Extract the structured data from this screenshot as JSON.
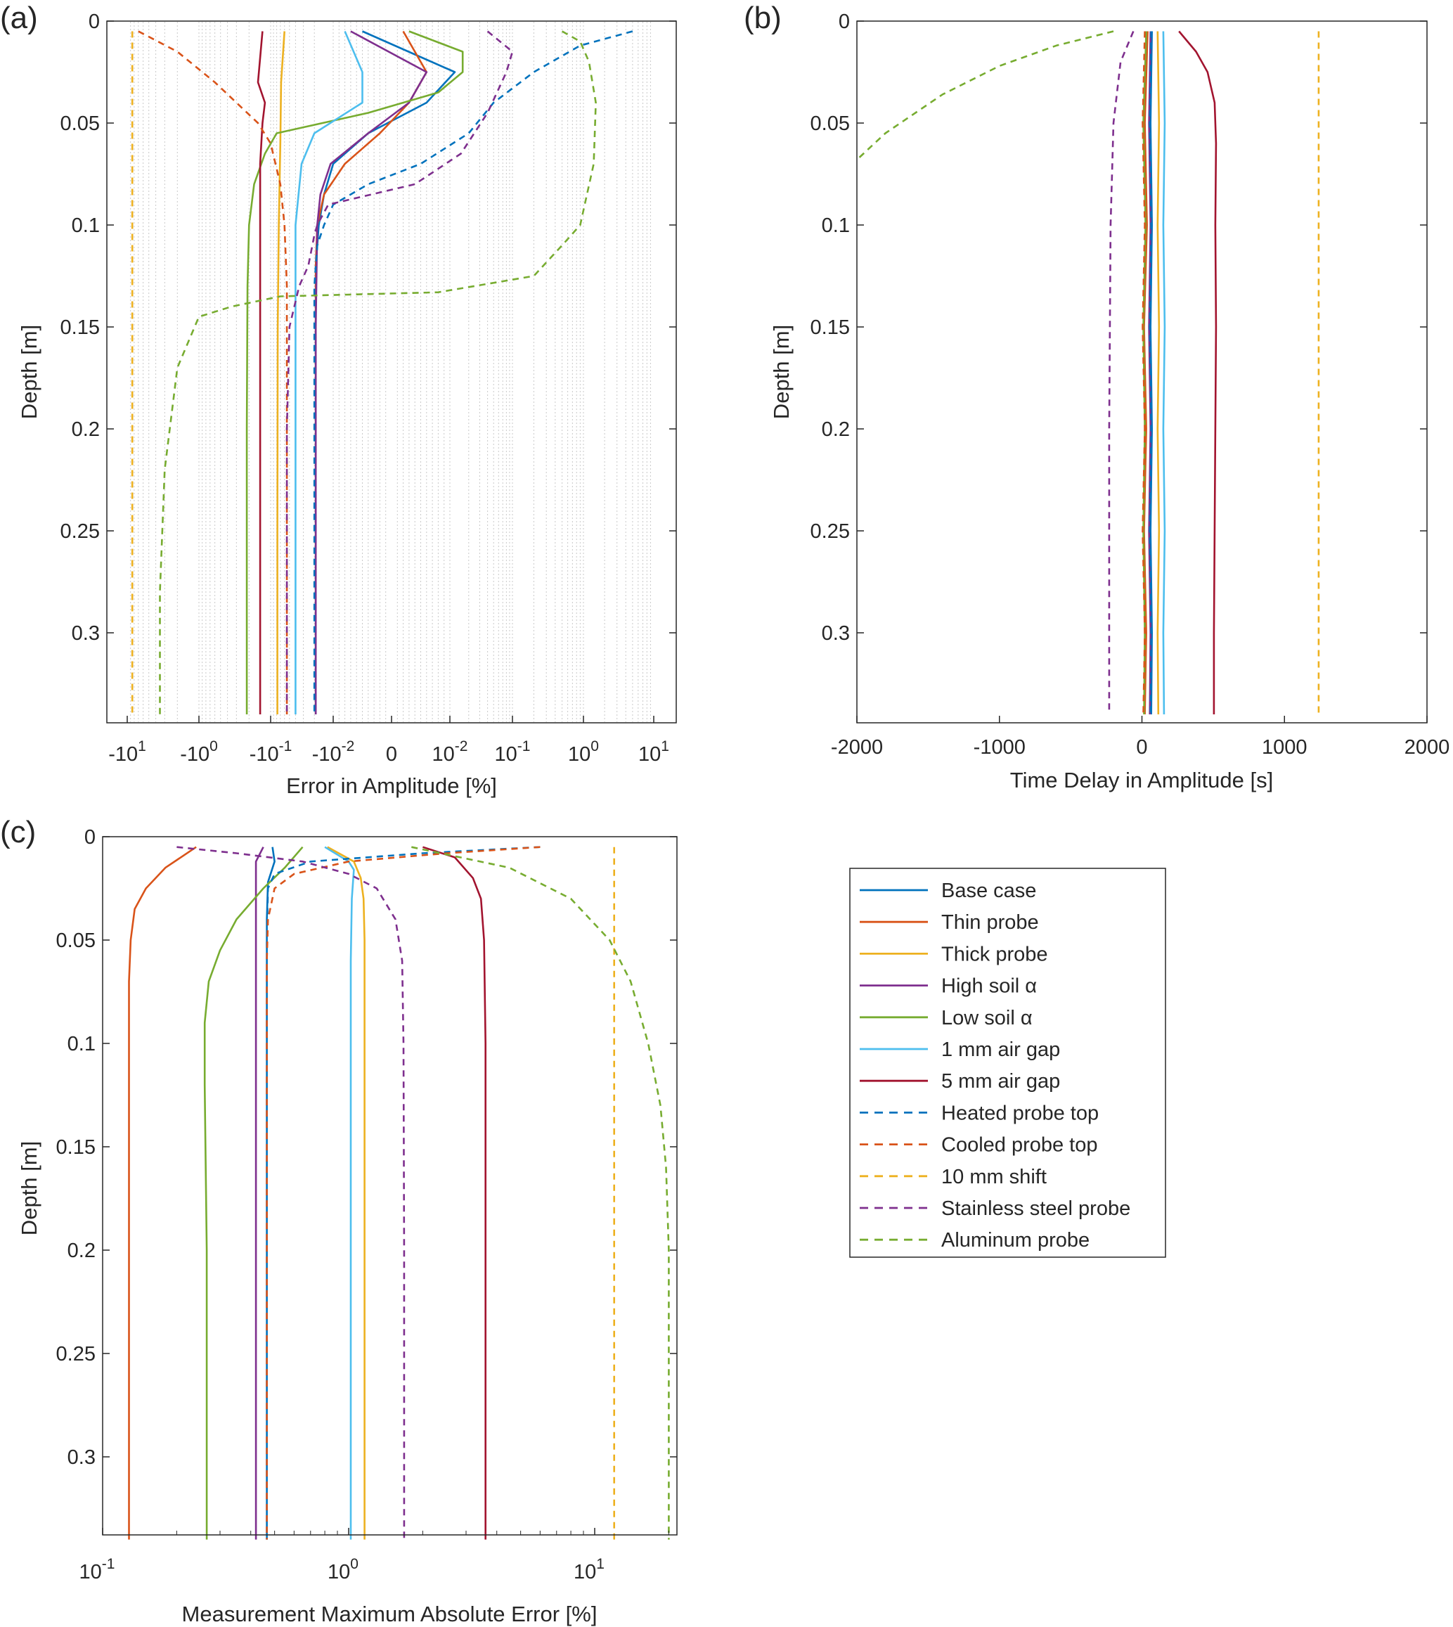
{
  "panels": {
    "a": {
      "label": "(a)",
      "xlabel": "Error in Amplitude [%]",
      "ylabel": "Depth [m]",
      "x_tick_labels": [
        "-10",
        "-10",
        "-10",
        "-10",
        "0",
        "10",
        "10",
        "10",
        "10"
      ],
      "x_tick_exponents": [
        "1",
        "0",
        "-1",
        "-2",
        "",
        "-2",
        "-1",
        "0",
        "1"
      ],
      "y_tick_labels": [
        "0",
        "0.05",
        "0.1",
        "0.15",
        "0.2",
        "0.25",
        "0.3"
      ]
    },
    "b": {
      "label": "(b)",
      "xlabel": "Time Delay in Amplitude [s]",
      "ylabel": "Depth [m]",
      "x_tick_labels": [
        "-2000",
        "-1000",
        "0",
        "1000",
        "2000"
      ],
      "y_tick_labels": [
        "0",
        "0.05",
        "0.1",
        "0.15",
        "0.2",
        "0.25",
        "0.3"
      ]
    },
    "c": {
      "label": "(c)",
      "xlabel": "Measurement Maximum Absolute Error [%]",
      "ylabel": "Depth [m]",
      "x_tick_labels": [
        "10",
        "10",
        "10"
      ],
      "x_tick_exponents": [
        "-1",
        "0",
        "1"
      ],
      "y_tick_labels": [
        "0",
        "0.05",
        "0.1",
        "0.15",
        "0.2",
        "0.25",
        "0.3"
      ]
    }
  },
  "legend": [
    {
      "label": "Base case",
      "color": "#0072BD",
      "style": "solid"
    },
    {
      "label": "Thin probe",
      "color": "#D95319",
      "style": "solid"
    },
    {
      "label": "Thick probe",
      "color": "#EDB120",
      "style": "solid"
    },
    {
      "label": "High soil α",
      "color": "#7E2F8E",
      "style": "solid"
    },
    {
      "label": "Low soil α",
      "color": "#77AC30",
      "style": "solid"
    },
    {
      "label": "1 mm air gap",
      "color": "#4DBEEE",
      "style": "solid"
    },
    {
      "label": "5 mm air gap",
      "color": "#A2142F",
      "style": "solid"
    },
    {
      "label": "Heated probe top",
      "color": "#0072BD",
      "style": "dashed"
    },
    {
      "label": "Cooled probe top",
      "color": "#D95319",
      "style": "dashed"
    },
    {
      "label": "10 mm shift",
      "color": "#EDB120",
      "style": "dashed"
    },
    {
      "label": "Stainless steel probe",
      "color": "#7E2F8E",
      "style": "dashed"
    },
    {
      "label": "Aluminum probe",
      "color": "#77AC30",
      "style": "dashed"
    }
  ],
  "chart_data": [
    {
      "panel": "a",
      "type": "line",
      "title": "",
      "xlabel": "Error in Amplitude [%]",
      "ylabel": "Depth [m]",
      "xscale": "symlog",
      "xlim": [
        -13,
        13
      ],
      "ylim": [
        0,
        0.345
      ],
      "y_reversed": true,
      "grid": "minor-x",
      "series": [
        {
          "name": "Base case",
          "x": [
            -0.005,
            0.012,
            0.006,
            -0.004,
            -0.01,
            -0.014,
            -0.017,
            -0.019,
            -0.019,
            -0.019
          ],
          "y": [
            0.005,
            0.025,
            0.04,
            0.055,
            0.07,
            0.085,
            0.1,
            0.12,
            0.2,
            0.34
          ]
        },
        {
          "name": "Thin probe",
          "x": [
            0.002,
            0.006,
            0.003,
            -0.002,
            -0.008,
            -0.014,
            -0.018,
            -0.019,
            -0.019,
            -0.019
          ],
          "y": [
            0.005,
            0.025,
            0.04,
            0.055,
            0.07,
            0.085,
            0.1,
            0.12,
            0.2,
            0.34
          ]
        },
        {
          "name": "Thick probe",
          "x": [
            -0.06,
            -0.068,
            -0.07,
            -0.074,
            -0.077,
            -0.078,
            -0.078
          ],
          "y": [
            0.005,
            0.03,
            0.06,
            0.1,
            0.15,
            0.25,
            0.34
          ]
        },
        {
          "name": "High soil α",
          "x": [
            -0.007,
            0.006,
            0.003,
            -0.004,
            -0.011,
            -0.016,
            -0.018,
            -0.019,
            -0.019
          ],
          "y": [
            0.005,
            0.025,
            0.04,
            0.055,
            0.07,
            0.085,
            0.1,
            0.15,
            0.34
          ]
        },
        {
          "name": "Low soil α",
          "x": [
            0.003,
            0.016,
            0.016,
            0.008,
            -0.004,
            -0.08,
            -0.12,
            -0.17,
            -0.2,
            -0.21,
            -0.215,
            -0.215
          ],
          "y": [
            0.005,
            0.015,
            0.025,
            0.035,
            0.045,
            0.055,
            0.065,
            0.08,
            0.1,
            0.13,
            0.2,
            0.34
          ]
        },
        {
          "name": "1 mm air gap",
          "x": [
            -0.008,
            -0.005,
            -0.005,
            -0.02,
            -0.032,
            -0.04,
            -0.04,
            -0.04
          ],
          "y": [
            0.005,
            0.025,
            0.04,
            0.055,
            0.07,
            0.1,
            0.2,
            0.34
          ]
        },
        {
          "name": "5 mm air gap",
          "x": [
            -0.13,
            -0.15,
            -0.12,
            -0.13,
            -0.14,
            -0.14,
            -0.14
          ],
          "y": [
            0.005,
            0.03,
            0.04,
            0.05,
            0.07,
            0.15,
            0.34
          ]
        },
        {
          "name": "Heated probe top",
          "x": [
            5.0,
            0.9,
            0.2,
            0.05,
            0.02,
            0.005,
            -0.004,
            -0.01,
            -0.014,
            -0.018,
            -0.02,
            -0.02,
            -0.02
          ],
          "y": [
            0.005,
            0.012,
            0.025,
            0.04,
            0.055,
            0.07,
            0.08,
            0.09,
            0.1,
            0.11,
            0.13,
            0.2,
            0.34
          ]
        },
        {
          "name": "Cooled probe top",
          "x": [
            -7.0,
            -2.0,
            -0.6,
            -0.15,
            -0.1,
            -0.07,
            -0.06,
            -0.055,
            -0.055,
            -0.055
          ],
          "y": [
            0.005,
            0.015,
            0.03,
            0.05,
            0.06,
            0.08,
            0.1,
            0.13,
            0.2,
            0.34
          ]
        },
        {
          "name": "10 mm shift",
          "x": [
            -8.5,
            -8.5,
            -8.5,
            -8.5,
            -8.5
          ],
          "y": [
            0.005,
            0.1,
            0.2,
            0.3,
            0.34
          ]
        },
        {
          "name": "Stainless steel probe",
          "x": [
            0.04,
            0.1,
            0.08,
            0.04,
            0.015,
            0.004,
            -0.012,
            -0.018,
            -0.02,
            -0.025,
            -0.035,
            -0.05,
            -0.055,
            -0.055
          ],
          "y": [
            0.005,
            0.015,
            0.025,
            0.045,
            0.065,
            0.08,
            0.09,
            0.1,
            0.105,
            0.12,
            0.13,
            0.15,
            0.2,
            0.34
          ]
        },
        {
          "name": "Aluminum probe",
          "x": [
            0.5,
            0.9,
            1.2,
            1.5,
            1.4,
            0.9,
            0.5,
            0.2,
            0.008,
            -0.07,
            -0.35,
            -1.0,
            -2.0,
            -3.0,
            -3.5,
            -3.5
          ],
          "y": [
            0.005,
            0.01,
            0.02,
            0.04,
            0.07,
            0.1,
            0.11,
            0.125,
            0.133,
            0.135,
            0.14,
            0.145,
            0.17,
            0.22,
            0.28,
            0.34
          ]
        }
      ]
    },
    {
      "panel": "b",
      "type": "line",
      "title": "",
      "xlabel": "Time Delay in Amplitude [s]",
      "ylabel": "Depth [m]",
      "xlim": [
        -2000,
        2000
      ],
      "ylim": [
        0,
        0.345
      ],
      "y_reversed": true,
      "series": [
        {
          "name": "Base case",
          "x": [
            70,
            60,
            70,
            60,
            70,
            60,
            70,
            65
          ],
          "y": [
            0.005,
            0.05,
            0.1,
            0.15,
            0.2,
            0.25,
            0.3,
            0.34
          ]
        },
        {
          "name": "Thin probe",
          "x": [
            40,
            20,
            35,
            15,
            30,
            15,
            30,
            20
          ],
          "y": [
            0.005,
            0.05,
            0.1,
            0.15,
            0.2,
            0.25,
            0.3,
            0.34
          ]
        },
        {
          "name": "Thick probe",
          "x": [
            110,
            120,
            110,
            120,
            110,
            120,
            110,
            115
          ],
          "y": [
            0.005,
            0.05,
            0.1,
            0.15,
            0.2,
            0.25,
            0.3,
            0.34
          ]
        },
        {
          "name": "High soil α",
          "x": [
            60,
            50,
            60,
            50,
            60,
            50,
            60,
            55
          ],
          "y": [
            0.005,
            0.05,
            0.1,
            0.15,
            0.2,
            0.25,
            0.3,
            0.34
          ]
        },
        {
          "name": "Low soil α",
          "x": [
            30,
            10,
            25,
            10,
            20,
            10,
            20,
            15
          ],
          "y": [
            0.005,
            0.05,
            0.1,
            0.15,
            0.2,
            0.25,
            0.3,
            0.34
          ]
        },
        {
          "name": "1 mm air gap",
          "x": [
            150,
            160,
            150,
            160,
            150,
            160,
            150,
            155
          ],
          "y": [
            0.005,
            0.05,
            0.1,
            0.15,
            0.2,
            0.25,
            0.3,
            0.34
          ]
        },
        {
          "name": "5 mm air gap",
          "x": [
            260,
            380,
            460,
            510,
            520,
            515,
            520,
            510,
            505,
            505
          ],
          "y": [
            0.005,
            0.015,
            0.025,
            0.04,
            0.06,
            0.1,
            0.15,
            0.25,
            0.3,
            0.34
          ]
        },
        {
          "name": "Heated probe top",
          "x": [
            65,
            55,
            65,
            55,
            65,
            55,
            65,
            60
          ],
          "y": [
            0.005,
            0.05,
            0.1,
            0.15,
            0.2,
            0.25,
            0.3,
            0.34
          ]
        },
        {
          "name": "Cooled probe top",
          "x": [
            20,
            5,
            20,
            5,
            20,
            5,
            20,
            10
          ],
          "y": [
            0.005,
            0.05,
            0.1,
            0.15,
            0.2,
            0.25,
            0.3,
            0.34
          ]
        },
        {
          "name": "10 mm shift",
          "x": [
            1240,
            1240,
            1240,
            1240
          ],
          "y": [
            0.005,
            0.1,
            0.2,
            0.34
          ]
        },
        {
          "name": "Stainless steel probe",
          "x": [
            -60,
            -150,
            -200,
            -220,
            -230,
            -230,
            -230
          ],
          "y": [
            0.005,
            0.02,
            0.05,
            0.1,
            0.2,
            0.3,
            0.34
          ]
        },
        {
          "name": "Aluminum probe",
          "x": [
            -200,
            -600,
            -1000,
            -1400,
            -1800,
            -2000
          ],
          "y": [
            0.005,
            0.012,
            0.022,
            0.036,
            0.055,
            0.068
          ]
        }
      ]
    },
    {
      "panel": "c",
      "type": "line",
      "title": "",
      "xlabel": "Measurement Maximum Absolute Error [%]",
      "ylabel": "Depth [m]",
      "xscale": "log",
      "xlim": [
        0.1,
        20
      ],
      "ylim": [
        0,
        0.345
      ],
      "y_reversed": true,
      "series": [
        {
          "name": "Base case",
          "x": [
            0.49,
            0.5,
            0.47,
            0.465,
            0.465,
            0.465
          ],
          "y": [
            0.005,
            0.012,
            0.022,
            0.04,
            0.1,
            0.34
          ]
        },
        {
          "name": "Thin probe",
          "x": [
            0.24,
            0.18,
            0.15,
            0.135,
            0.13,
            0.128,
            0.128,
            0.128
          ],
          "y": [
            0.005,
            0.015,
            0.025,
            0.035,
            0.05,
            0.07,
            0.2,
            0.34
          ]
        },
        {
          "name": "Thick probe",
          "x": [
            0.82,
            1.05,
            1.12,
            1.15,
            1.16,
            1.16,
            1.16
          ],
          "y": [
            0.005,
            0.012,
            0.02,
            0.03,
            0.05,
            0.15,
            0.34
          ]
        },
        {
          "name": "High soil α",
          "x": [
            0.45,
            0.42,
            0.42,
            0.42,
            0.42
          ],
          "y": [
            0.005,
            0.012,
            0.02,
            0.1,
            0.34
          ]
        },
        {
          "name": "Low soil α",
          "x": [
            0.65,
            0.55,
            0.45,
            0.35,
            0.3,
            0.27,
            0.26,
            0.26,
            0.265,
            0.265
          ],
          "y": [
            0.005,
            0.015,
            0.025,
            0.04,
            0.055,
            0.07,
            0.09,
            0.12,
            0.2,
            0.34
          ]
        },
        {
          "name": "1 mm air gap",
          "x": [
            0.8,
            1.0,
            1.05,
            1.03,
            1.02,
            1.02,
            1.02
          ],
          "y": [
            0.005,
            0.012,
            0.016,
            0.03,
            0.06,
            0.15,
            0.34
          ]
        },
        {
          "name": "5 mm air gap",
          "x": [
            2.0,
            2.7,
            3.2,
            3.45,
            3.55,
            3.6,
            3.6
          ],
          "y": [
            0.005,
            0.01,
            0.02,
            0.03,
            0.05,
            0.1,
            0.34
          ]
        },
        {
          "name": "Heated probe top",
          "x": [
            6.0,
            2.0,
            0.7,
            0.5,
            0.47,
            0.465,
            0.465
          ],
          "y": [
            0.005,
            0.008,
            0.012,
            0.018,
            0.025,
            0.05,
            0.34
          ]
        },
        {
          "name": "Cooled probe top",
          "x": [
            6.0,
            2.5,
            1.0,
            0.6,
            0.5,
            0.47,
            0.465,
            0.465
          ],
          "y": [
            0.005,
            0.008,
            0.012,
            0.018,
            0.025,
            0.04,
            0.06,
            0.34
          ]
        },
        {
          "name": "10 mm shift",
          "x": [
            12,
            12,
            12,
            12
          ],
          "y": [
            0.005,
            0.1,
            0.2,
            0.34
          ]
        },
        {
          "name": "Stainless steel probe",
          "x": [
            0.2,
            0.35,
            0.65,
            1.0,
            1.3,
            1.55,
            1.65,
            1.67,
            1.68,
            1.68
          ],
          "y": [
            0.005,
            0.008,
            0.012,
            0.018,
            0.025,
            0.04,
            0.06,
            0.1,
            0.2,
            0.34
          ]
        },
        {
          "name": "Aluminum probe",
          "x": [
            1.8,
            4.5,
            8.0,
            11.5,
            14.0,
            16.5,
            18.5,
            19.5,
            20.0,
            20.0
          ],
          "y": [
            0.005,
            0.015,
            0.03,
            0.05,
            0.07,
            0.1,
            0.13,
            0.16,
            0.2,
            0.34
          ]
        }
      ]
    }
  ]
}
